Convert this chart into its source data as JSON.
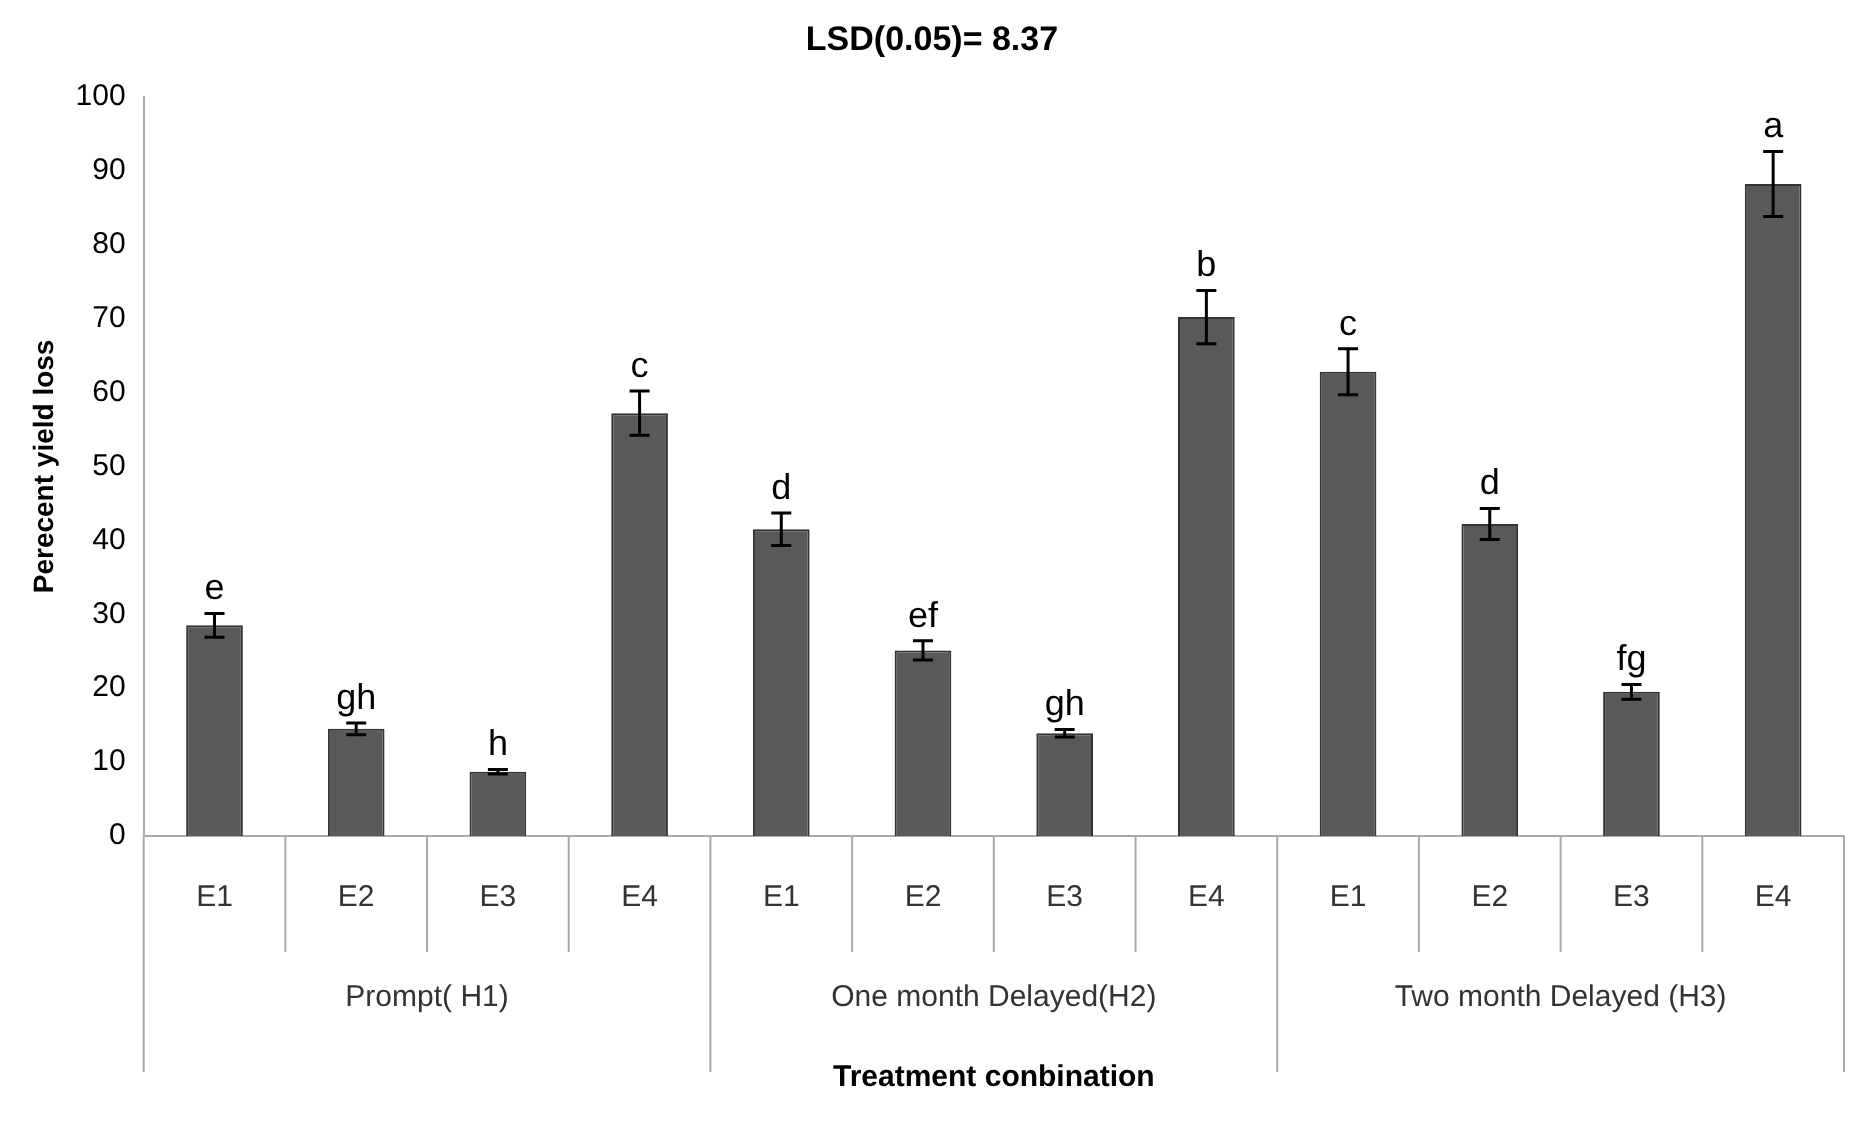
{
  "chart_data": {
    "type": "bar",
    "title": "LSD(0.05)= 8.37",
    "xlabel": "Treatment conbination",
    "ylabel": "Perecent yield loss",
    "categories": [
      "E1",
      "E2",
      "E3",
      "E4",
      "E1",
      "E2",
      "E3",
      "E4",
      "E1",
      "E2",
      "E3",
      "E4"
    ],
    "values": [
      28.5,
      14.5,
      8.7,
      57.2,
      41.5,
      25.1,
      13.9,
      70.2,
      62.8,
      42.2,
      19.5,
      88.2
    ],
    "errors": [
      1.6,
      0.8,
      0.3,
      3.0,
      2.2,
      1.3,
      0.5,
      3.6,
      3.1,
      2.1,
      1.0,
      4.4
    ],
    "value_labels": [
      "e",
      "gh",
      "h",
      "c",
      "d",
      "ef",
      "gh",
      "b",
      "c",
      "d",
      "fg",
      "a"
    ],
    "annotations": [
      "Prompt( H1)",
      "One month Delayed(H2)",
      "Two month Delayed (H3)"
    ],
    "color": "#595959",
    "ylim": [
      0,
      100
    ],
    "yticks": [
      0,
      10,
      20,
      30,
      40,
      50,
      60,
      70,
      80,
      90,
      100
    ],
    "grid": false,
    "legend": false
  }
}
